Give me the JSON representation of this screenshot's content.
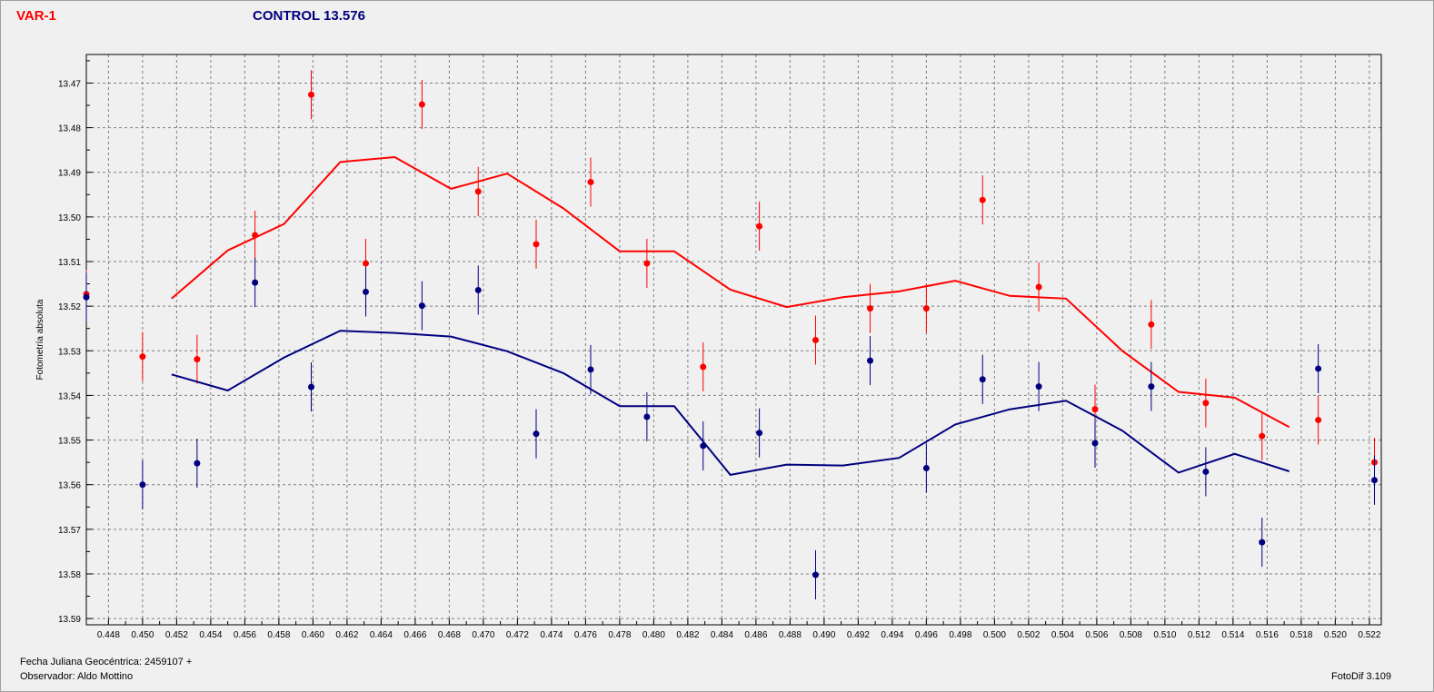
{
  "chart_data": {
    "type": "scatter",
    "var_title": "VAR-1",
    "control_title": "CONTROL 13.576",
    "ylabel": "Fotometría absoluta",
    "xlim": [
      0.4467,
      0.5227
    ],
    "ylim": [
      13.5914,
      13.4636
    ],
    "y_inverted": true,
    "grid": true,
    "x_ticks": [
      "0.448",
      "0.450",
      "0.452",
      "0.454",
      "0.456",
      "0.458",
      "0.460",
      "0.462",
      "0.464",
      "0.466",
      "0.468",
      "0.470",
      "0.472",
      "0.474",
      "0.476",
      "0.478",
      "0.480",
      "0.482",
      "0.484",
      "0.486",
      "0.488",
      "0.490",
      "0.492",
      "0.494",
      "0.496",
      "0.498",
      "0.500",
      "0.502",
      "0.504",
      "0.506",
      "0.508",
      "0.510",
      "0.512",
      "0.514",
      "0.516",
      "0.518",
      "0.520",
      "0.522"
    ],
    "y_ticks": [
      "13.47",
      "13.48",
      "13.49",
      "13.50",
      "13.51",
      "13.52",
      "13.53",
      "13.54",
      "13.55",
      "13.56",
      "13.57",
      "13.58",
      "13.59"
    ],
    "series": [
      {
        "color": "#ff0000",
        "error": 0.0055,
        "points": [
          {
            "x": 0.4467,
            "y": 13.5173
          },
          {
            "x": 0.45,
            "y": 13.5313
          },
          {
            "x": 0.4532,
            "y": 13.5319
          },
          {
            "x": 0.4566,
            "y": 13.5041
          },
          {
            "x": 0.4599,
            "y": 13.4726
          },
          {
            "x": 0.4631,
            "y": 13.5104
          },
          {
            "x": 0.4664,
            "y": 13.4748
          },
          {
            "x": 0.4697,
            "y": 13.4943
          },
          {
            "x": 0.4731,
            "y": 13.5061
          },
          {
            "x": 0.4763,
            "y": 13.4922
          },
          {
            "x": 0.4796,
            "y": 13.5104
          },
          {
            "x": 0.4829,
            "y": 13.5336
          },
          {
            "x": 0.4862,
            "y": 13.5021
          },
          {
            "x": 0.4895,
            "y": 13.5276
          },
          {
            "x": 0.4927,
            "y": 13.5205
          },
          {
            "x": 0.496,
            "y": 13.5205
          },
          {
            "x": 0.4993,
            "y": 13.4962
          },
          {
            "x": 0.5026,
            "y": 13.5157
          },
          {
            "x": 0.5059,
            "y": 13.5431
          },
          {
            "x": 0.5092,
            "y": 13.5241
          },
          {
            "x": 0.5124,
            "y": 13.5417
          },
          {
            "x": 0.5157,
            "y": 13.5491
          },
          {
            "x": 0.519,
            "y": 13.5455
          },
          {
            "x": 0.5223,
            "y": 13.555
          }
        ],
        "trend": [
          {
            "x": 0.4517,
            "y": 13.5183
          },
          {
            "x": 0.455,
            "y": 13.5075
          },
          {
            "x": 0.4583,
            "y": 13.5016
          },
          {
            "x": 0.4616,
            "y": 13.4877
          },
          {
            "x": 0.4648,
            "y": 13.4866
          },
          {
            "x": 0.4681,
            "y": 13.4937
          },
          {
            "x": 0.4714,
            "y": 13.4903
          },
          {
            "x": 0.4747,
            "y": 13.4981
          },
          {
            "x": 0.478,
            "y": 13.5077
          },
          {
            "x": 0.4812,
            "y": 13.5077
          },
          {
            "x": 0.4845,
            "y": 13.5163
          },
          {
            "x": 0.4878,
            "y": 13.5202
          },
          {
            "x": 0.4911,
            "y": 13.518
          },
          {
            "x": 0.4944,
            "y": 13.5167
          },
          {
            "x": 0.4977,
            "y": 13.5143
          },
          {
            "x": 0.5009,
            "y": 13.5177
          },
          {
            "x": 0.5042,
            "y": 13.5183
          },
          {
            "x": 0.5075,
            "y": 13.53
          },
          {
            "x": 0.5108,
            "y": 13.5392
          },
          {
            "x": 0.5141,
            "y": 13.5405
          },
          {
            "x": 0.5173,
            "y": 13.5471
          }
        ]
      },
      {
        "color": "#000080",
        "error": 0.0055,
        "points": [
          {
            "x": 0.4467,
            "y": 13.518
          },
          {
            "x": 0.45,
            "y": 13.56
          },
          {
            "x": 0.4532,
            "y": 13.5552
          },
          {
            "x": 0.4566,
            "y": 13.5147
          },
          {
            "x": 0.4599,
            "y": 13.5381
          },
          {
            "x": 0.4631,
            "y": 13.5168
          },
          {
            "x": 0.4664,
            "y": 13.5199
          },
          {
            "x": 0.4697,
            "y": 13.5164
          },
          {
            "x": 0.4731,
            "y": 13.5486
          },
          {
            "x": 0.4763,
            "y": 13.5342
          },
          {
            "x": 0.4796,
            "y": 13.5448
          },
          {
            "x": 0.4829,
            "y": 13.5513
          },
          {
            "x": 0.4862,
            "y": 13.5484
          },
          {
            "x": 0.4895,
            "y": 13.5802
          },
          {
            "x": 0.4927,
            "y": 13.5322
          },
          {
            "x": 0.496,
            "y": 13.5563
          },
          {
            "x": 0.4993,
            "y": 13.5364
          },
          {
            "x": 0.5026,
            "y": 13.538
          },
          {
            "x": 0.5059,
            "y": 13.5507
          },
          {
            "x": 0.5092,
            "y": 13.538
          },
          {
            "x": 0.5124,
            "y": 13.5571
          },
          {
            "x": 0.5157,
            "y": 13.5729
          },
          {
            "x": 0.519,
            "y": 13.534
          },
          {
            "x": 0.5223,
            "y": 13.559
          }
        ],
        "trend": [
          {
            "x": 0.4517,
            "y": 13.5353
          },
          {
            "x": 0.455,
            "y": 13.5389
          },
          {
            "x": 0.4583,
            "y": 13.5315
          },
          {
            "x": 0.4616,
            "y": 13.5255
          },
          {
            "x": 0.4648,
            "y": 13.526
          },
          {
            "x": 0.4681,
            "y": 13.5268
          },
          {
            "x": 0.4714,
            "y": 13.5301
          },
          {
            "x": 0.4747,
            "y": 13.535
          },
          {
            "x": 0.478,
            "y": 13.5424
          },
          {
            "x": 0.4812,
            "y": 13.5424
          },
          {
            "x": 0.4845,
            "y": 13.5578
          },
          {
            "x": 0.4878,
            "y": 13.5555
          },
          {
            "x": 0.4911,
            "y": 13.5557
          },
          {
            "x": 0.4944,
            "y": 13.554
          },
          {
            "x": 0.4977,
            "y": 13.5465
          },
          {
            "x": 0.5009,
            "y": 13.5431
          },
          {
            "x": 0.5042,
            "y": 13.5412
          },
          {
            "x": 0.5075,
            "y": 13.5479
          },
          {
            "x": 0.5108,
            "y": 13.5573
          },
          {
            "x": 0.5141,
            "y": 13.5531
          },
          {
            "x": 0.5173,
            "y": 13.557
          }
        ]
      }
    ]
  },
  "footer": {
    "date_label": "Fecha Juliana Geocéntrica: 2459107 +",
    "observer": "Observador: Aldo Mottino",
    "version": "FotoDif 3.109"
  }
}
